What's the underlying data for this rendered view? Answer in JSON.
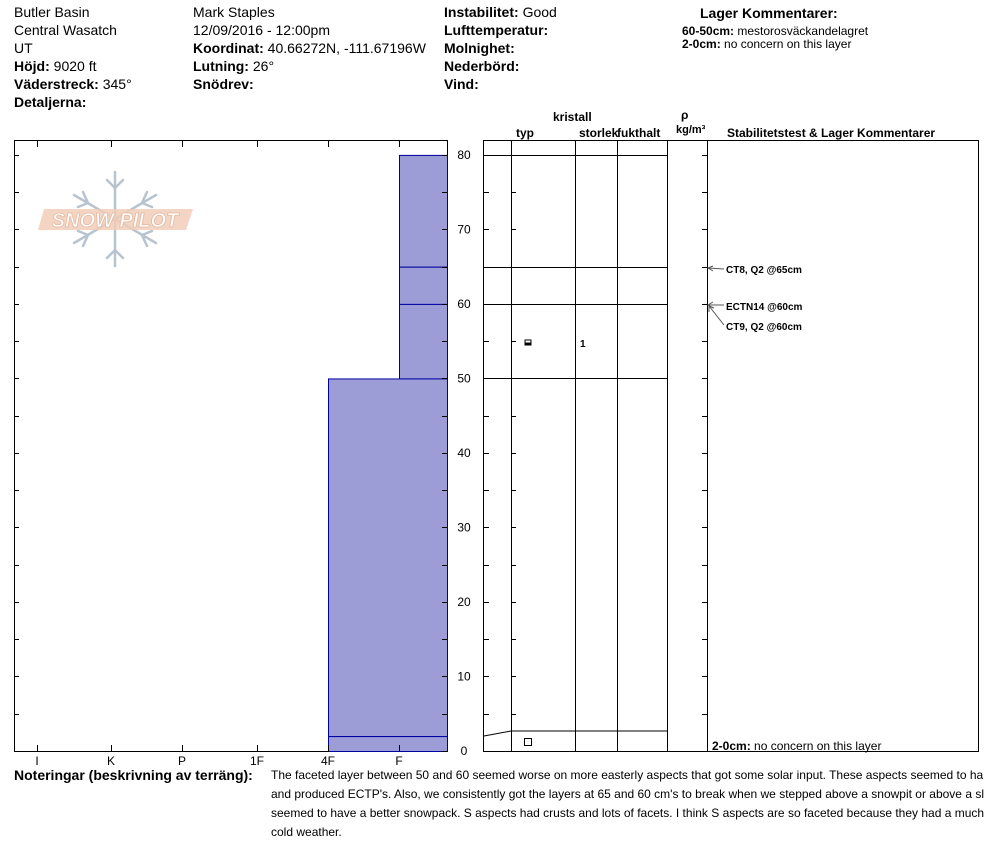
{
  "header": {
    "col1": {
      "location": "Butler Basin",
      "range": "Central Wasatch",
      "state": "UT",
      "elevation_label": "Höjd:",
      "elevation_value": "9020 ft",
      "aspect_label": "Väderstreck:",
      "aspect_value": "345°",
      "details_label": "Detaljerna:"
    },
    "col2": {
      "observer": "Mark Staples",
      "datetime": "12/09/2016 - 12:00pm",
      "coord_label": "Koordinat:",
      "coord_value": "40.66272N, -111.67196W",
      "slope_label": "Lutning:",
      "slope_value": "26°",
      "drift_label": "Snödrev:"
    },
    "col3": {
      "instability_label": "Instabilitet:",
      "instability_value": "Good",
      "airtemp_label": "Lufttemperatur:",
      "sky_label": "Molnighet:",
      "precip_label": "Nederbörd:",
      "wind_label": "Vind:"
    },
    "col4": {
      "title": "Lager Kommentarer:",
      "entries": [
        {
          "depth": "60-50cm:",
          "text": "mestorosväckandelagret"
        },
        {
          "depth": "2-0cm:",
          "text": "no concern on this layer"
        }
      ]
    }
  },
  "logo": {
    "text": "SNOW PILOT"
  },
  "table_headers": {
    "crystal": "kristall",
    "type": "typ",
    "size": "storlek",
    "moisture": "fukthalt",
    "rho": "ρ",
    "density_unit": "kg/m³",
    "stability": "Stabilitetstest & Lager Kommentarer"
  },
  "chart_data": {
    "type": "bar",
    "description_axis": "Hand hardness profile",
    "x_categories": [
      "I",
      "K",
      "P",
      "1F",
      "4F",
      "F"
    ],
    "ylim": [
      0,
      82
    ],
    "y_ticks": [
      0,
      10,
      20,
      30,
      40,
      50,
      60,
      70,
      80
    ],
    "layers": [
      {
        "top": 80,
        "bottom": 65,
        "hardness": "F"
      },
      {
        "top": 65,
        "bottom": 60,
        "hardness": "F"
      },
      {
        "top": 60,
        "bottom": 50,
        "hardness": "F"
      },
      {
        "top": 50,
        "bottom": 2,
        "hardness": "4F"
      },
      {
        "top": 2,
        "bottom": 0,
        "hardness": "4F"
      }
    ],
    "fill_color": "#9c9cd6",
    "edge_color": "#0000a0"
  },
  "crystals": [
    {
      "depth": 55,
      "symbol": "faceted-depth-hoar",
      "size": "1"
    },
    {
      "depth": 1,
      "symbol": "faceted-square",
      "size": ""
    }
  ],
  "stability_tests": [
    {
      "label": "CT8, Q2 @65cm",
      "depth": 65
    },
    {
      "label": "ECTN14 @60cm",
      "depth": 60
    },
    {
      "label": "CT9, Q2 @60cm",
      "depth": 60
    }
  ],
  "bottom_comment": {
    "depth": "2-0cm:",
    "text": "no concern on this layer"
  },
  "notes": {
    "label": "Noteringar (beskrivning av terräng):",
    "lines": [
      "The faceted layer between 50 and 60 seemed worse on more easterly aspects that got some solar input. These aspects seemed to ha",
      "and produced ECTP's. Also, we consistently got the layers at 65 and 60 cm's to break when we stepped above a snowpit or above a sl",
      "seemed to have a better snowpack. S aspects had crusts and lots of facets. I think S aspects are so faceted because they had a much",
      "cold weather."
    ]
  }
}
